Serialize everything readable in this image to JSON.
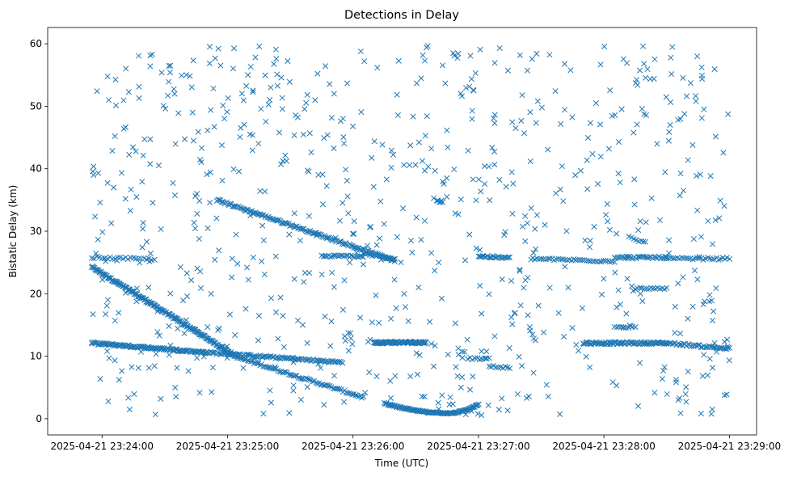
{
  "chart_data": {
    "type": "scatter",
    "title": "Detections in Delay",
    "xlabel": "Time (UTC)",
    "ylabel": "Bistatic Delay (km)",
    "x_start": "2025-04-21 23:23:55",
    "x_end": "2025-04-21 23:29:00",
    "xlim": [
      "2025-04-21 23:23:34",
      "2025-04-21 23:29:13"
    ],
    "ylim": [
      -2.6,
      62.6
    ],
    "x_ticks": [
      "2025-04-21 23:24:00",
      "2025-04-21 23:25:00",
      "2025-04-21 23:26:00",
      "2025-04-21 23:27:00",
      "2025-04-21 23:28:00",
      "2025-04-21 23:29:00"
    ],
    "y_ticks": [
      0,
      10,
      20,
      30,
      40,
      50,
      60
    ],
    "marker": "x",
    "color": "#1f77b4",
    "grid": false,
    "series": [
      {
        "name": "",
        "tracks": [
          {
            "t0": "2025-04-21 23:23:55",
            "t1": "2025-04-21 23:25:05",
            "y0": 24.3,
            "y1": 9.8,
            "count": 210
          },
          {
            "t0": "2025-04-21 23:25:05",
            "t1": "2025-04-21 23:26:05",
            "y0": 9.8,
            "y1": 3.4,
            "count": 80
          },
          {
            "t0": "2025-04-21 23:23:55",
            "t1": "2025-04-21 23:24:50",
            "y0": 12.1,
            "y1": 10.6,
            "count": 130
          },
          {
            "t0": "2025-04-21 23:24:50",
            "t1": "2025-04-21 23:25:55",
            "y0": 10.6,
            "y1": 9.0,
            "count": 100
          },
          {
            "t0": "2025-04-21 23:24:55",
            "t1": "2025-04-21 23:26:20",
            "y0": 35.0,
            "y1": 25.3,
            "count": 150
          },
          {
            "t0": "2025-04-21 23:26:10",
            "t1": "2025-04-21 23:26:35",
            "y0": 12.2,
            "y1": 12.2,
            "count": 90
          },
          {
            "t0": "2025-04-21 23:27:50",
            "t1": "2025-04-21 23:28:30",
            "y0": 12.1,
            "y1": 12.1,
            "count": 90
          },
          {
            "t0": "2025-04-21 23:28:30",
            "t1": "2025-04-21 23:29:00",
            "y0": 12.1,
            "y1": 11.2,
            "count": 45
          },
          {
            "t0": "2025-04-21 23:26:05",
            "t1": "2025-04-21 23:26:20",
            "y0": 26.5,
            "y1": 25.5,
            "count": 25
          },
          {
            "t0": "2025-04-21 23:25:45",
            "t1": "2025-04-21 23:26:05",
            "y0": 26.0,
            "y1": 26.0,
            "count": 25
          },
          {
            "t0": "2025-04-21 23:27:00",
            "t1": "2025-04-21 23:27:15",
            "y0": 26.0,
            "y1": 25.7,
            "count": 25
          },
          {
            "t0": "2025-04-21 23:27:25",
            "t1": "2025-04-21 23:28:05",
            "y0": 25.6,
            "y1": 25.2,
            "count": 40
          },
          {
            "t0": "2025-04-21 23:28:05",
            "t1": "2025-04-21 23:28:30",
            "y0": 25.8,
            "y1": 25.8,
            "count": 35
          },
          {
            "t0": "2025-04-21 23:28:30",
            "t1": "2025-04-21 23:29:00",
            "y0": 25.6,
            "y1": 25.6,
            "count": 30
          },
          {
            "t0": "2025-04-21 23:23:55",
            "t1": "2025-04-21 23:24:25",
            "y0": 25.8,
            "y1": 25.5,
            "count": 25
          },
          {
            "t0": "2025-04-21 23:28:15",
            "t1": "2025-04-21 23:28:30",
            "y0": 20.8,
            "y1": 20.8,
            "count": 15
          },
          {
            "t0": "2025-04-21 23:28:05",
            "t1": "2025-04-21 23:28:15",
            "y0": 14.7,
            "y1": 14.7,
            "count": 10
          },
          {
            "t0": "2025-04-21 23:26:40",
            "t1": "2025-04-21 23:26:43",
            "y0": 34.8,
            "y1": 34.8,
            "count": 6
          },
          {
            "t0": "2025-04-21 23:27:05",
            "t1": "2025-04-21 23:27:15",
            "y0": 8.5,
            "y1": 8.1,
            "count": 10
          },
          {
            "t0": "2025-04-21 23:26:55",
            "t1": "2025-04-21 23:27:05",
            "y0": 9.6,
            "y1": 9.6,
            "count": 10
          },
          {
            "t0": "2025-04-21 23:28:12",
            "t1": "2025-04-21 23:28:20",
            "y0": 29.0,
            "y1": 28.2,
            "count": 8
          }
        ],
        "arcs": [
          {
            "t0": "2025-04-21 23:26:15",
            "t1": "2025-04-21 23:27:00",
            "t_min": "2025-04-21 23:26:45",
            "y_start": 2.5,
            "y_min": 0.9,
            "y_end": 2.3,
            "count": 120
          }
        ],
        "scatter_noise": {
          "t0": "2025-04-21 23:23:55",
          "t1": "2025-04-21 23:29:00",
          "y_min": 0.5,
          "y_max": 59.8,
          "count": 760
        }
      }
    ]
  }
}
